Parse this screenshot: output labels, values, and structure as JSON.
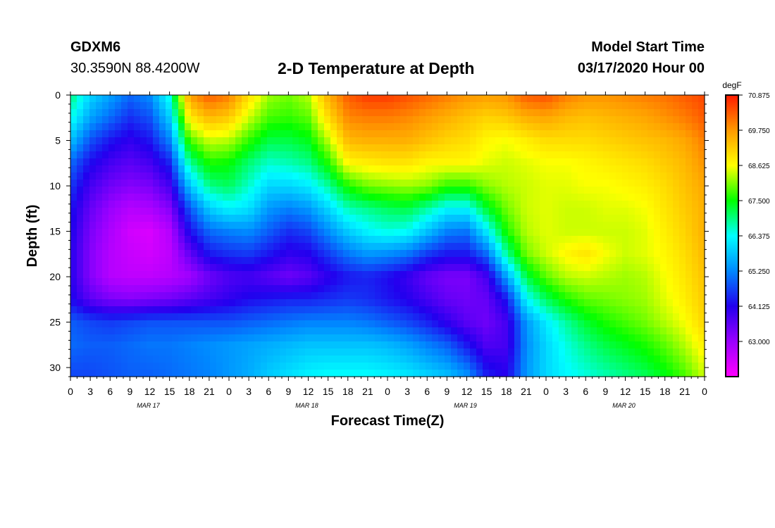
{
  "header": {
    "station_id": "GDXM6",
    "station_location": "30.3590N 88.4200W",
    "title": "2-D Temperature at Depth",
    "start_label": "Model Start Time",
    "start_value": "03/17/2020 Hour 00"
  },
  "chart_data": {
    "type": "heatmap",
    "title": "2-D Temperature at Depth",
    "xlabel": "Forecast Time(Z)",
    "ylabel": "Depth (ft)",
    "x_range_hours": [
      0,
      96
    ],
    "y_range_ft": [
      0,
      31
    ],
    "x_tick_labels": [
      "0",
      "3",
      "6",
      "9",
      "12",
      "15",
      "18",
      "21",
      "0",
      "3",
      "6",
      "9",
      "12",
      "15",
      "18",
      "21",
      "0",
      "3",
      "6",
      "9",
      "12",
      "15",
      "18",
      "21",
      "0",
      "3",
      "6",
      "9",
      "12",
      "15",
      "18",
      "21",
      "0"
    ],
    "day_labels": [
      {
        "label": "MAR 17",
        "hour": 12
      },
      {
        "label": "MAR 18",
        "hour": 36
      },
      {
        "label": "MAR 19",
        "hour": 60
      },
      {
        "label": "MAR 20",
        "hour": 84
      }
    ],
    "y_tick_labels": [
      "0",
      "5",
      "10",
      "15",
      "20",
      "25",
      "30"
    ],
    "y_ticks_ft": [
      0,
      5,
      10,
      15,
      20,
      25,
      30
    ],
    "colorbar": {
      "unit": "degF",
      "min": 61.875,
      "max": 70.875,
      "labels": [
        "70.875",
        "69.750",
        "68.625",
        "67.500",
        "66.375",
        "65.250",
        "64.125",
        "63.000"
      ],
      "label_values": [
        70.875,
        69.75,
        68.625,
        67.5,
        66.375,
        65.25,
        64.125,
        63.0
      ]
    },
    "grid_hours": [
      0,
      3,
      6,
      9,
      12,
      15,
      18,
      21,
      24,
      27,
      30,
      33,
      36,
      39,
      42,
      45,
      48,
      51,
      54,
      57,
      60,
      63,
      66,
      69,
      72,
      75,
      78,
      81,
      84,
      87,
      90,
      93,
      96
    ],
    "grid_depths_ft": [
      0,
      2.5,
      5,
      7.5,
      10,
      12.5,
      15,
      17.5,
      20,
      22.5,
      25,
      27.5,
      31
    ],
    "temperature_degF": [
      [
        67.0,
        66.0,
        65.5,
        65.0,
        65.3,
        66.5,
        69.7,
        70.3,
        70.0,
        69.0,
        68.2,
        68.0,
        68.3,
        69.5,
        70.3,
        70.6,
        70.6,
        70.4,
        70.2,
        70.0,
        69.8,
        69.7,
        69.8,
        70.3,
        70.4,
        70.0,
        69.8,
        69.8,
        69.9,
        70.0,
        70.1,
        70.3,
        70.5
      ],
      [
        66.5,
        65.5,
        65.0,
        64.5,
        64.8,
        65.9,
        68.8,
        69.4,
        69.2,
        68.4,
        67.8,
        67.7,
        67.9,
        69.0,
        69.9,
        70.0,
        70.0,
        69.9,
        69.7,
        69.5,
        69.3,
        69.1,
        69.2,
        69.5,
        69.6,
        69.4,
        69.3,
        69.4,
        69.5,
        69.6,
        69.8,
        70.0,
        70.3
      ],
      [
        65.8,
        64.8,
        64.3,
        64.0,
        64.3,
        65.2,
        67.8,
        68.4,
        68.3,
        67.7,
        67.2,
        67.2,
        67.4,
        68.3,
        69.4,
        69.5,
        69.5,
        69.5,
        69.3,
        69.1,
        69.0,
        68.7,
        68.6,
        68.8,
        69.0,
        69.0,
        69.0,
        69.1,
        69.2,
        69.3,
        69.4,
        69.6,
        70.0
      ],
      [
        65.0,
        64.2,
        63.8,
        63.6,
        63.8,
        64.4,
        66.8,
        67.6,
        67.5,
        67.0,
        66.6,
        66.7,
        66.9,
        67.6,
        68.7,
        68.8,
        68.9,
        68.9,
        68.7,
        68.7,
        68.7,
        68.5,
        68.4,
        68.5,
        68.6,
        68.6,
        68.7,
        68.8,
        68.9,
        69.0,
        69.2,
        69.4,
        69.8
      ],
      [
        64.6,
        63.8,
        63.4,
        63.2,
        63.3,
        63.8,
        65.8,
        66.9,
        67.1,
        66.6,
        66.0,
        66.0,
        66.2,
        66.8,
        67.6,
        68.0,
        68.1,
        68.2,
        68.1,
        67.7,
        67.7,
        68.1,
        68.3,
        68.4,
        68.5,
        68.5,
        68.6,
        68.6,
        68.7,
        68.8,
        69.0,
        69.3,
        69.6
      ],
      [
        64.3,
        63.5,
        63.0,
        62.7,
        62.8,
        63.2,
        64.8,
        65.9,
        66.3,
        66.1,
        65.4,
        65.2,
        65.4,
        66.0,
        66.7,
        66.9,
        67.1,
        67.2,
        66.8,
        66.3,
        66.3,
        67.3,
        68.0,
        68.4,
        68.5,
        68.4,
        68.4,
        68.5,
        68.5,
        68.6,
        68.9,
        69.2,
        69.5
      ],
      [
        64.2,
        63.3,
        62.8,
        62.4,
        62.3,
        62.7,
        64.2,
        65.0,
        65.2,
        65.3,
        64.9,
        64.5,
        64.7,
        65.3,
        65.9,
        66.3,
        66.5,
        66.4,
        65.8,
        65.2,
        65.1,
        66.2,
        67.6,
        68.3,
        68.5,
        68.4,
        68.4,
        68.4,
        68.4,
        68.5,
        68.8,
        69.1,
        69.5
      ],
      [
        64.1,
        63.2,
        62.7,
        62.5,
        62.4,
        62.6,
        63.5,
        64.3,
        64.5,
        64.6,
        64.3,
        64.0,
        64.1,
        64.6,
        65.1,
        65.4,
        65.3,
        65.1,
        64.6,
        64.3,
        64.3,
        65.0,
        66.8,
        68.0,
        68.4,
        68.7,
        68.9,
        68.6,
        68.4,
        68.5,
        68.7,
        69.0,
        69.4
      ],
      [
        64.1,
        63.2,
        62.7,
        62.6,
        62.6,
        62.7,
        62.9,
        63.4,
        63.7,
        63.8,
        63.6,
        63.4,
        63.6,
        64.0,
        64.3,
        64.4,
        64.2,
        63.9,
        63.5,
        63.3,
        63.3,
        63.8,
        65.5,
        67.2,
        67.9,
        68.3,
        68.4,
        68.3,
        68.2,
        68.3,
        68.6,
        68.9,
        69.3
      ],
      [
        64.2,
        63.6,
        63.3,
        63.2,
        63.3,
        63.4,
        63.6,
        63.8,
        64.0,
        64.2,
        64.3,
        64.4,
        64.4,
        64.5,
        64.6,
        64.5,
        64.3,
        64.1,
        63.8,
        63.5,
        63.4,
        63.5,
        64.3,
        66.3,
        67.1,
        67.6,
        67.9,
        68.0,
        68.1,
        68.2,
        68.5,
        68.8,
        69.2
      ],
      [
        64.9,
        64.7,
        64.6,
        64.7,
        64.8,
        64.8,
        64.8,
        64.8,
        64.8,
        64.9,
        65.0,
        65.1,
        65.2,
        65.2,
        65.2,
        65.1,
        64.9,
        64.7,
        64.4,
        64.0,
        63.6,
        63.4,
        63.8,
        65.4,
        66.2,
        66.8,
        67.3,
        67.6,
        67.8,
        68.0,
        68.3,
        68.6,
        69.1
      ],
      [
        65.0,
        64.9,
        64.9,
        65.0,
        65.1,
        65.1,
        65.2,
        65.3,
        65.4,
        65.5,
        65.6,
        65.7,
        65.8,
        65.8,
        65.8,
        65.8,
        65.7,
        65.5,
        65.2,
        64.9,
        64.3,
        63.7,
        63.8,
        65.3,
        66.0,
        66.5,
        66.9,
        67.2,
        67.4,
        67.6,
        67.9,
        68.3,
        68.8
      ],
      [
        64.7,
        64.7,
        64.8,
        64.9,
        64.9,
        65.0,
        65.1,
        65.2,
        65.4,
        65.6,
        65.9,
        66.1,
        66.3,
        66.4,
        66.4,
        66.4,
        66.3,
        66.2,
        66.0,
        65.8,
        65.4,
        64.4,
        64.1,
        65.4,
        66.0,
        66.3,
        66.5,
        66.7,
        66.9,
        67.1,
        67.4,
        67.8,
        68.4
      ]
    ]
  }
}
